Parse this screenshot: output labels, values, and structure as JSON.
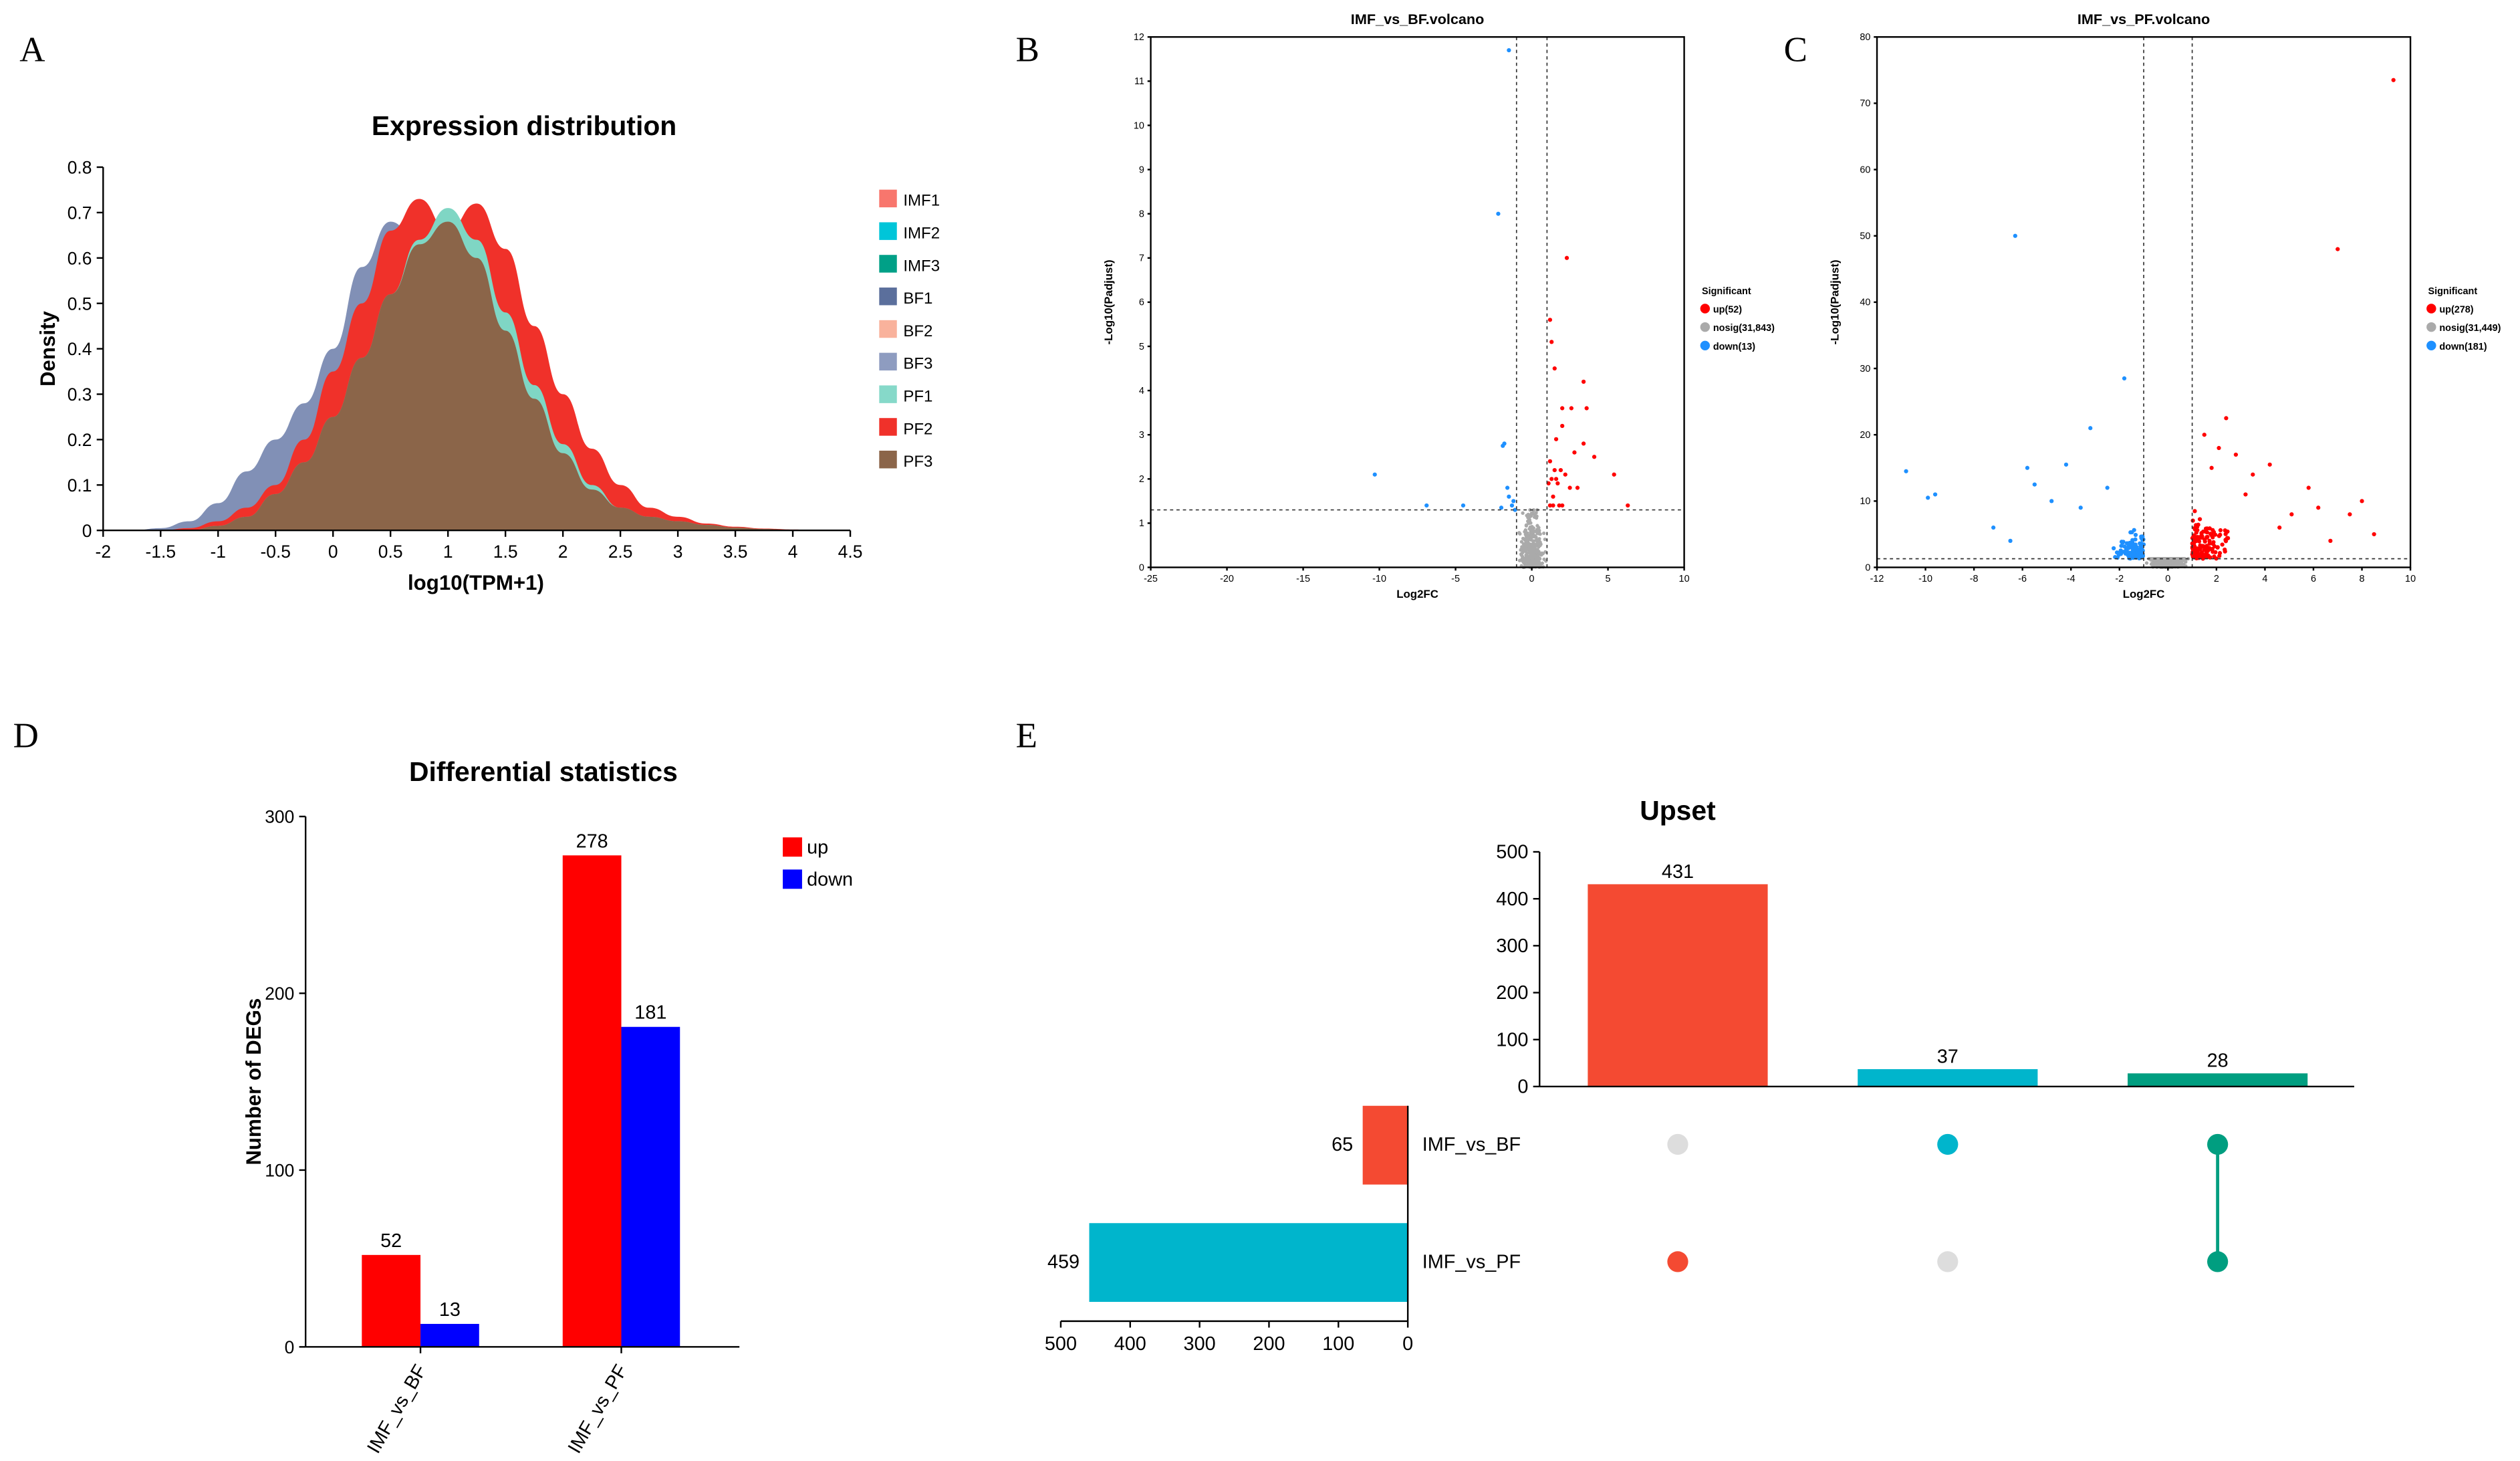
{
  "panel_labels": [
    "A",
    "B",
    "C",
    "D",
    "E"
  ],
  "chart_data": [
    {
      "type": "area",
      "title": "Expression distribution",
      "xlabel": "log10(TPM+1)",
      "ylabel": "Density",
      "xlim": [
        -2,
        4.5
      ],
      "ylim": [
        0,
        0.8
      ],
      "xticks": [
        "-2",
        "-1.5",
        "-1",
        "-0.5",
        "0",
        "0.5",
        "1",
        "1.5",
        "2",
        "2.5",
        "3",
        "3.5",
        "4",
        "4.5"
      ],
      "yticks": [
        "0",
        "0.1",
        "0.2",
        "0.3",
        "0.4",
        "0.5",
        "0.6",
        "0.7",
        "0.8"
      ],
      "legend": [
        {
          "name": "IMF1",
          "color": "#F8766D"
        },
        {
          "name": "IMF2",
          "color": "#00C5D9"
        },
        {
          "name": "IMF3",
          "color": "#00A087"
        },
        {
          "name": "BF1",
          "color": "#5B6F9C"
        },
        {
          "name": "BF2",
          "color": "#F9B29C"
        },
        {
          "name": "BF3",
          "color": "#8E9CC0"
        },
        {
          "name": "PF1",
          "color": "#86D9C9"
        },
        {
          "name": "PF2",
          "color": "#F0312A"
        },
        {
          "name": "PF3",
          "color": "#8B6549"
        }
      ],
      "legend_position": "right",
      "x": [
        -2,
        -1.75,
        -1.5,
        -1.25,
        -1,
        -0.75,
        -0.5,
        -0.25,
        0,
        0.25,
        0.5,
        0.75,
        1,
        1.25,
        1.5,
        1.75,
        2,
        2.25,
        2.5,
        2.75,
        3,
        3.25,
        3.5,
        3.75,
        4,
        4.25,
        4.5
      ],
      "series": [
        {
          "name": "BF3",
          "color": "#8190B6",
          "values": [
            0,
            0,
            0.005,
            0.02,
            0.06,
            0.13,
            0.2,
            0.28,
            0.4,
            0.58,
            0.68,
            0.63,
            0.58,
            0.48,
            0.32,
            0.2,
            0.12,
            0.07,
            0.04,
            0.025,
            0.015,
            0.01,
            0.005,
            0.002,
            0,
            0,
            0
          ]
        },
        {
          "name": "PF2",
          "color": "#F0312A",
          "values": [
            0,
            0,
            0,
            0.005,
            0.02,
            0.05,
            0.1,
            0.2,
            0.35,
            0.5,
            0.66,
            0.73,
            0.66,
            0.72,
            0.62,
            0.45,
            0.3,
            0.18,
            0.1,
            0.05,
            0.03,
            0.015,
            0.008,
            0.004,
            0.002,
            0,
            0
          ]
        },
        {
          "name": "PF1",
          "color": "#7FD6C4",
          "values": [
            0,
            0,
            0,
            0,
            0.01,
            0.03,
            0.08,
            0.15,
            0.25,
            0.38,
            0.52,
            0.64,
            0.71,
            0.64,
            0.48,
            0.32,
            0.19,
            0.1,
            0.05,
            0.03,
            0.02,
            0.012,
            0.006,
            0.003,
            0.001,
            0,
            0
          ]
        },
        {
          "name": "PF3",
          "color": "#8B6549",
          "values": [
            0,
            0,
            0,
            0,
            0.01,
            0.03,
            0.08,
            0.15,
            0.25,
            0.38,
            0.52,
            0.63,
            0.68,
            0.6,
            0.44,
            0.29,
            0.17,
            0.09,
            0.05,
            0.03,
            0.02,
            0.012,
            0.006,
            0.003,
            0.001,
            0,
            0
          ]
        }
      ]
    },
    {
      "type": "scatter",
      "title": "IMF_vs_BF.volcano",
      "xlabel": "Log2FC",
      "ylabel": "-Log10(Padjust)",
      "xlim": [
        -25,
        10
      ],
      "ylim": [
        0,
        12
      ],
      "xticks": [
        "-25",
        "-20",
        "-15",
        "-10",
        "-5",
        "0",
        "5",
        "10"
      ],
      "yticks": [
        "0",
        "1",
        "2",
        "3",
        "4",
        "5",
        "6",
        "7",
        "8",
        "9",
        "10",
        "11",
        "12"
      ],
      "thresholds": {
        "log2fc": [
          -1,
          1
        ],
        "padj_line": 1.3
      },
      "legend_title": "Significant",
      "legend": [
        {
          "label": "up(52)",
          "color": "#FF0000"
        },
        {
          "label": "nosig(31,843)",
          "color": "#AAAAAA"
        },
        {
          "label": "down(13)",
          "color": "#1E90FF"
        }
      ],
      "up": [
        [
          2.3,
          7.0
        ],
        [
          1.2,
          5.6
        ],
        [
          1.3,
          5.1
        ],
        [
          1.5,
          4.5
        ],
        [
          3.4,
          4.2
        ],
        [
          2.0,
          3.6
        ],
        [
          2.6,
          3.6
        ],
        [
          3.6,
          3.6
        ],
        [
          2.0,
          3.2
        ],
        [
          1.6,
          2.9
        ],
        [
          3.4,
          2.8
        ],
        [
          1.2,
          2.4
        ],
        [
          4.1,
          2.5
        ],
        [
          1.5,
          2.2
        ],
        [
          1.9,
          2.2
        ],
        [
          2.2,
          2.1
        ],
        [
          5.4,
          2.1
        ],
        [
          1.3,
          2.0
        ],
        [
          1.7,
          1.9
        ],
        [
          2.5,
          1.8
        ],
        [
          3.0,
          1.8
        ],
        [
          6.3,
          1.4
        ],
        [
          1.2,
          1.4
        ],
        [
          1.4,
          1.4
        ],
        [
          1.8,
          1.4
        ],
        [
          2.0,
          1.4
        ],
        [
          1.1,
          1.9
        ],
        [
          1.6,
          2.0
        ],
        [
          2.8,
          2.6
        ],
        [
          1.4,
          1.6
        ]
      ],
      "down": [
        [
          -1.5,
          11.7
        ],
        [
          -2.2,
          8.0
        ],
        [
          -1.8,
          2.8
        ],
        [
          -1.9,
          2.75
        ],
        [
          -10.3,
          2.1
        ],
        [
          -6.9,
          1.4
        ],
        [
          -1.5,
          1.6
        ],
        [
          -1.2,
          1.5
        ],
        [
          -4.5,
          1.4
        ],
        [
          -2.0,
          1.35
        ],
        [
          -1.3,
          1.4
        ],
        [
          -1.6,
          1.8
        ],
        [
          -1.1,
          1.3
        ]
      ]
    },
    {
      "type": "scatter",
      "title": "IMF_vs_PF.volcano",
      "xlabel": "Log2FC",
      "ylabel": "-Log10(Padjust)",
      "xlim": [
        -12,
        10
      ],
      "ylim": [
        0,
        80
      ],
      "xticks": [
        "-12",
        "-10",
        "-8",
        "-6",
        "-4",
        "-2",
        "0",
        "2",
        "4",
        "6",
        "8",
        "10"
      ],
      "yticks": [
        "0",
        "10",
        "20",
        "30",
        "40",
        "50",
        "60",
        "70",
        "80"
      ],
      "thresholds": {
        "log2fc": [
          -1,
          1
        ],
        "padj_line": 1.3
      },
      "legend_title": "Significant",
      "legend": [
        {
          "label": "up(278)",
          "color": "#FF0000"
        },
        {
          "label": "nosig(31,449)",
          "color": "#AAAAAA"
        },
        {
          "label": "down(181)",
          "color": "#1E90FF"
        }
      ],
      "up": [
        [
          9.3,
          73.5
        ],
        [
          7.0,
          48
        ],
        [
          2.4,
          22.5
        ],
        [
          1.5,
          20
        ],
        [
          4.2,
          15.5
        ],
        [
          8,
          10
        ],
        [
          3.5,
          14
        ],
        [
          5.8,
          12
        ],
        [
          6.2,
          9
        ],
        [
          7.5,
          8
        ],
        [
          2.8,
          17
        ],
        [
          3.2,
          11
        ],
        [
          4.6,
          6
        ],
        [
          6.7,
          4
        ],
        [
          8.5,
          5
        ],
        [
          5.1,
          8
        ],
        [
          2.1,
          18
        ],
        [
          1.8,
          15
        ]
      ],
      "down": [
        [
          -6.3,
          50
        ],
        [
          -1.8,
          28.5
        ],
        [
          -10.8,
          14.5
        ],
        [
          -3.2,
          21
        ],
        [
          -5.8,
          15
        ],
        [
          -9.6,
          11
        ],
        [
          -4.2,
          15.5
        ],
        [
          -9.9,
          10.5
        ],
        [
          -5.5,
          12.5
        ],
        [
          -7.2,
          6
        ],
        [
          -4.8,
          10
        ],
        [
          -3.6,
          9
        ],
        [
          -2.5,
          12
        ],
        [
          -6.5,
          4
        ]
      ]
    },
    {
      "type": "bar",
      "title": "Differential statistics",
      "xlabel": "",
      "ylabel": "Number of DEGs",
      "ylim": [
        0,
        300
      ],
      "yticks": [
        "0",
        "100",
        "200",
        "300"
      ],
      "categories": [
        "IMF_vs_BF",
        "IMF_vs_PF"
      ],
      "series": [
        {
          "name": "up",
          "color": "#FF0000",
          "values": [
            52,
            278
          ]
        },
        {
          "name": "down",
          "color": "#0000FF",
          "values": [
            13,
            181
          ]
        }
      ],
      "legend_position": "top-right"
    },
    {
      "type": "bar",
      "title": "Upset",
      "ylim": [
        0,
        500
      ],
      "yticks": [
        "0",
        "100",
        "200",
        "300",
        "400",
        "500"
      ],
      "intersections": [
        {
          "value": 431,
          "color": "#F44A32",
          "sets": [
            "IMF_vs_PF"
          ]
        },
        {
          "value": 37,
          "color": "#00B5CC",
          "sets": [
            "IMF_vs_BF"
          ]
        },
        {
          "value": 28,
          "color": "#009E80",
          "sets": [
            "IMF_vs_BF",
            "IMF_vs_PF"
          ]
        }
      ],
      "sets": [
        {
          "name": "IMF_vs_BF",
          "size": 65,
          "color": "#F44A32"
        },
        {
          "name": "IMF_vs_PF",
          "size": 459,
          "color": "#00B5CC"
        }
      ],
      "set_xticks": [
        "500",
        "400",
        "300",
        "200",
        "100",
        "0"
      ],
      "inactive_dot_color": "#DDDDDD"
    }
  ]
}
